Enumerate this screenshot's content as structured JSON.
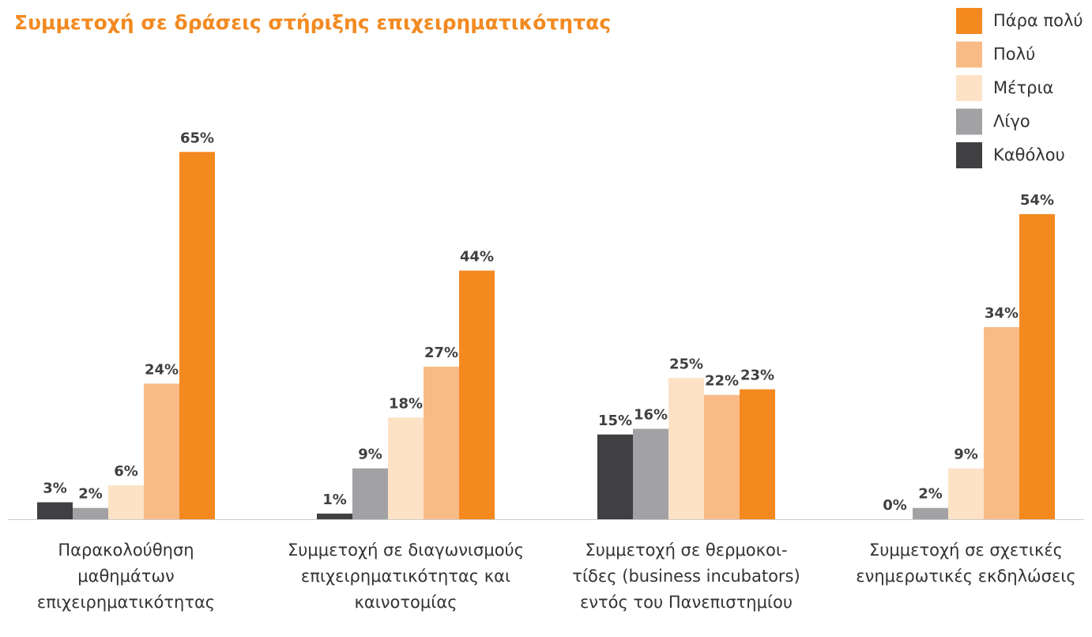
{
  "chart_data": {
    "type": "bar",
    "title": "Συμμετοχή σε δράσεις στήριξης επιχειρηματικότητας",
    "categories": [
      "Παρακολούθηση\nμαθημάτων\nεπιχειρηματικότητας",
      "Συμμετοχή σε διαγωνισμούς\nεπιχειρηματικότητας και\nκαινοτομίας",
      "Συμμετοχή σε θερμοκοι-\nτίδες (business incubators)\nεντός του Πανεπιστημίου",
      "Συμμετοχή σε σχετικές\nενημερωτικές εκδηλώσεις"
    ],
    "series": [
      {
        "name": "Καθόλου",
        "color": "#404042",
        "values": [
          3,
          1,
          15,
          0
        ],
        "value_labels": [
          "3%",
          "1%",
          "15%",
          "0%"
        ]
      },
      {
        "name": "Λίγο",
        "color": "#a2a2a5",
        "values": [
          2,
          9,
          16,
          2
        ],
        "value_labels": [
          "2%",
          "9%",
          "16%",
          "2%"
        ]
      },
      {
        "name": "Μέτρια",
        "color": "#fde2c6",
        "values": [
          6,
          18,
          25,
          9
        ],
        "value_labels": [
          "6%",
          "18%",
          "25%",
          "9%"
        ]
      },
      {
        "name": "Πολύ",
        "color": "#f9bb86",
        "values": [
          24,
          27,
          22,
          34
        ],
        "value_labels": [
          "24%",
          "27%",
          "22%",
          "34%"
        ]
      },
      {
        "name": "Πάρα πολύ",
        "color": "#f4891f",
        "values": [
          65,
          44,
          23,
          54
        ],
        "value_labels": [
          "65%",
          "44%",
          "23%",
          "54%"
        ]
      }
    ],
    "legend": "top-right"
  }
}
